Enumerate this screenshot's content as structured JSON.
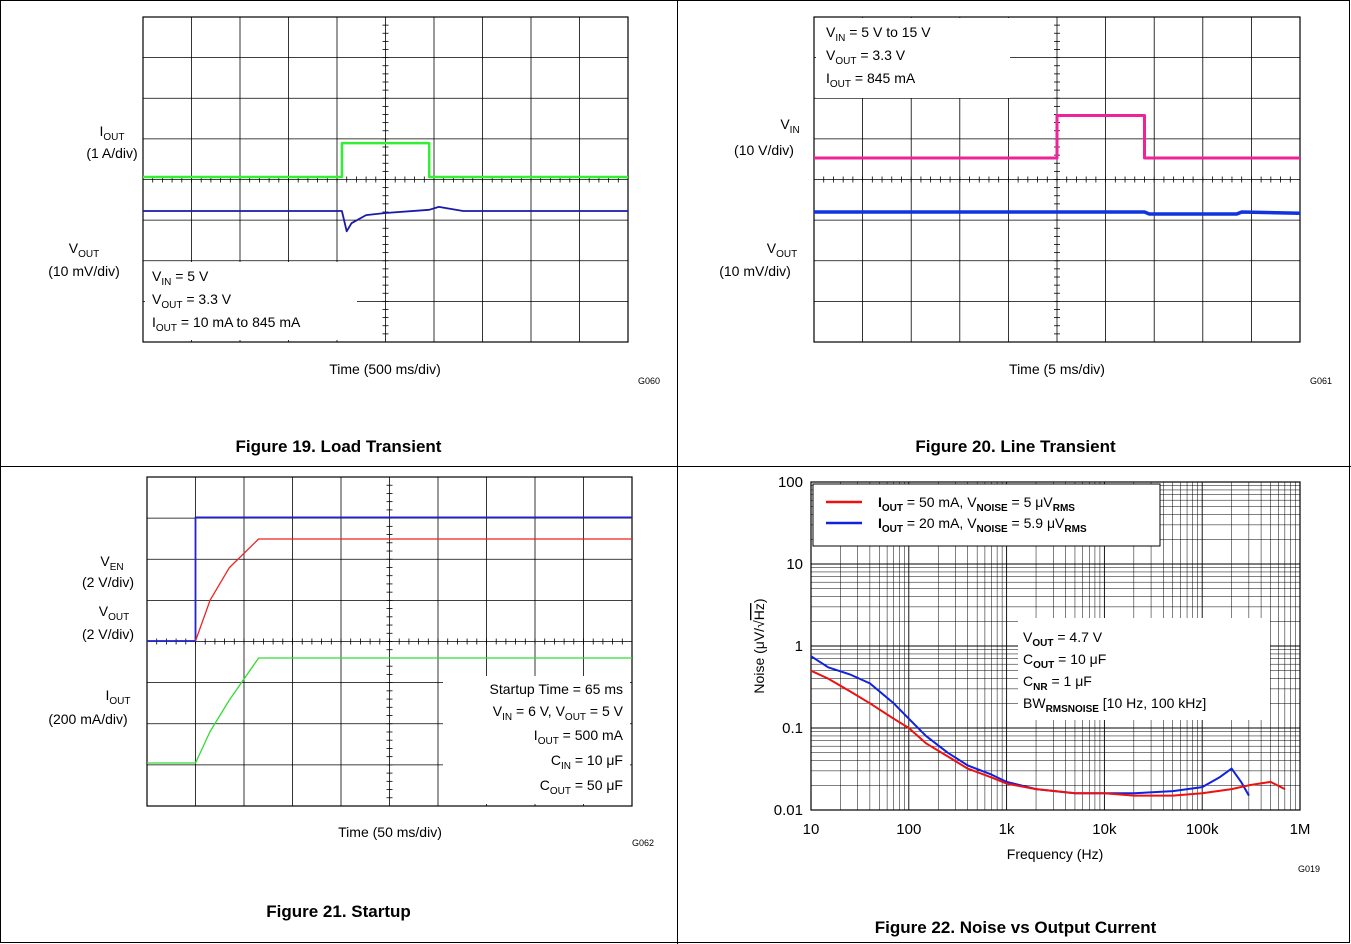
{
  "fig19": {
    "caption": "Figure 19. Load Transient",
    "xlabel": "Time (500 ms/div)",
    "code": "G060",
    "ch1": {
      "main": "I",
      "sub": "OUT",
      "unit": "(1 A/div)"
    },
    "ch2": {
      "main": "V",
      "sub": "OUT",
      "unit": "(10 mV/div)"
    },
    "cond": [
      {
        "main": "V",
        "sub": "IN",
        "rest": " = 5 V"
      },
      {
        "main": "V",
        "sub": "OUT",
        "rest": " = 3.3 V"
      },
      {
        "main": "I",
        "sub": "OUT",
        "rest": " = 10 mA to 845 mA"
      }
    ]
  },
  "fig20": {
    "caption": "Figure 20. Line Transient",
    "xlabel": "Time (5 ms/div)",
    "code": "G061",
    "ch1": {
      "main": "V",
      "sub": "IN",
      "unit": "(10 V/div)"
    },
    "ch2": {
      "main": "V",
      "sub": "OUT",
      "unit": "(10 mV/div)"
    },
    "cond": [
      {
        "main": "V",
        "sub": "IN",
        "rest": " = 5 V to 15 V"
      },
      {
        "main": "V",
        "sub": "OUT",
        "rest": " = 3.3 V"
      },
      {
        "main": "I",
        "sub": "OUT",
        "rest": " = 845 mA"
      }
    ]
  },
  "fig21": {
    "caption": "Figure 21. Startup",
    "xlabel": "Time (50 ms/div)",
    "code": "G062",
    "ch1": {
      "main": "V",
      "sub": "EN",
      "unit": "(2 V/div)"
    },
    "ch2": {
      "main": "V",
      "sub": "OUT",
      "unit": "(2 V/div)"
    },
    "ch3": {
      "main": "I",
      "sub": "OUT",
      "unit": "(200 mA/div)"
    },
    "cond": {
      "line1": "Startup Time = 65 ms",
      "line2": [
        {
          "main": "V",
          "sub": "IN",
          "rest": " = 6 V, "
        },
        {
          "main": "V",
          "sub": "OUT",
          "rest": " = 5 V"
        }
      ],
      "line3": {
        "main": "I",
        "sub": "OUT",
        "rest": " = 500 mA"
      },
      "line4": {
        "main": "C",
        "sub": "IN",
        "rest": " = 10 μF"
      },
      "line5": {
        "main": "C",
        "sub": "OUT",
        "rest": " = 50 μF"
      }
    }
  },
  "fig22": {
    "caption": "Figure 22. Noise vs Output Current",
    "xlabel": "Frequency (Hz)",
    "ylabel_pre": "Noise (μV/",
    "ylabel_rad": "Hz",
    "ylabel_post": ")",
    "code": "G019",
    "xticks": [
      "10",
      "100",
      "1k",
      "10k",
      "100k",
      "1M"
    ],
    "yticks": [
      "100",
      "10",
      "1",
      "0.1",
      "0.01"
    ],
    "legend": [
      {
        "color": "#ee1111",
        "p1": "I",
        "s1": "OUT",
        "p2": " = 50 mA, V",
        "s2": "NOISE",
        "p3": " = 5 μV",
        "s3": "RMS"
      },
      {
        "color": "#1122dd",
        "p1": "I",
        "s1": "OUT",
        "p2": " = 20 mA, V",
        "s2": "NOISE",
        "p3": " = 5.9 μV",
        "s3": "RMS"
      }
    ],
    "cond": [
      {
        "main": "V",
        "sub": "OUT",
        "rest": " = 4.7 V"
      },
      {
        "main": "C",
        "sub": "OUT",
        "rest": " = 10 μF"
      },
      {
        "main": "C",
        "sub": "NR",
        "rest": " = 1 μF"
      },
      {
        "main": "BW",
        "sub": "RMSNOISE",
        "rest": " [10 Hz, 100 kHz]"
      }
    ]
  },
  "chart_data": [
    {
      "type": "line",
      "title": "Figure 19. Load Transient",
      "xlabel": "Time (500 ms/div)",
      "x_divisions": 10,
      "series": [
        {
          "name": "IOUT (1 A/div)",
          "color": "#33ee33",
          "unit": "A",
          "x": [
            0,
            4.1,
            4.1,
            5.9,
            5.9,
            10
          ],
          "y": [
            0.01,
            0.01,
            0.845,
            0.845,
            0.01,
            0.01
          ]
        },
        {
          "name": "VOUT (10 mV/div)",
          "color": "#1a1aaa",
          "unit": "mV deviation",
          "x": [
            0,
            4.1,
            4.2,
            4.3,
            4.6,
            5,
            5.9,
            6.1,
            6.6,
            10
          ],
          "y": [
            0,
            0,
            -5,
            -3,
            -1,
            -0.5,
            0.3,
            1,
            0,
            0
          ]
        }
      ]
    },
    {
      "type": "line",
      "title": "Figure 20. Line Transient",
      "xlabel": "Time (5 ms/div)",
      "x_divisions": 10,
      "series": [
        {
          "name": "VIN (10 V/div)",
          "color": "#ee2299",
          "unit": "V",
          "x": [
            0,
            5,
            5,
            6.8,
            6.8,
            10
          ],
          "y": [
            5,
            5,
            15,
            15,
            5,
            5
          ]
        },
        {
          "name": "VOUT (10 mV/div)",
          "color": "#1133dd",
          "unit": "mV deviation",
          "x": [
            0,
            5,
            6.8,
            6.9,
            8.7,
            8.8,
            10
          ],
          "y": [
            0,
            0,
            0,
            -0.5,
            -0.5,
            0,
            -0.3
          ]
        }
      ]
    },
    {
      "type": "line",
      "title": "Figure 21. Startup",
      "xlabel": "Time (50 ms/div)",
      "x_divisions": 10,
      "series": [
        {
          "name": "VEN (2 V/div)",
          "color": "#2222cc",
          "unit": "V",
          "x": [
            0,
            1,
            1,
            10
          ],
          "y": [
            0,
            0,
            6,
            6
          ]
        },
        {
          "name": "VOUT (2 V/div)",
          "color": "#ee2222",
          "unit": "V",
          "x": [
            1,
            1.3,
            1.7,
            2.3,
            10
          ],
          "y": [
            0,
            2.0,
            3.6,
            5,
            5
          ]
        },
        {
          "name": "IOUT (200 mA/div)",
          "color": "#33dd33",
          "unit": "mA",
          "x": [
            0,
            1,
            1.3,
            1.7,
            2.3,
            10
          ],
          "y": [
            0,
            0,
            150,
            300,
            500,
            500
          ]
        }
      ]
    },
    {
      "type": "line",
      "title": "Figure 22. Noise vs Output Current",
      "xlabel": "Frequency (Hz)",
      "ylabel": "Noise (μV/√Hz)",
      "xscale": "log",
      "yscale": "log",
      "xlim": [
        10,
        1000000
      ],
      "ylim": [
        0.01,
        100
      ],
      "legend": "top-left",
      "series": [
        {
          "name": "IOUT = 50 mA, VNOISE = 5 μVRMS",
          "color": "#ee1111",
          "x": [
            10,
            15,
            25,
            40,
            70,
            100,
            150,
            250,
            400,
            700,
            1000,
            2000,
            5000,
            10000,
            20000,
            50000,
            100000,
            200000,
            300000,
            500000,
            700000
          ],
          "y": [
            0.5,
            0.4,
            0.28,
            0.2,
            0.13,
            0.1,
            0.065,
            0.045,
            0.032,
            0.025,
            0.021,
            0.018,
            0.016,
            0.016,
            0.015,
            0.015,
            0.016,
            0.018,
            0.02,
            0.022,
            0.018
          ]
        },
        {
          "name": "IOUT = 20 mA, VNOISE = 5.9 μVRMS",
          "color": "#1122dd",
          "x": [
            10,
            15,
            25,
            40,
            70,
            100,
            150,
            250,
            400,
            700,
            1000,
            2000,
            5000,
            10000,
            20000,
            50000,
            100000,
            150000,
            200000,
            250000,
            300000
          ],
          "y": [
            0.75,
            0.55,
            0.45,
            0.35,
            0.2,
            0.13,
            0.08,
            0.05,
            0.035,
            0.027,
            0.022,
            0.018,
            0.016,
            0.016,
            0.016,
            0.017,
            0.019,
            0.025,
            0.032,
            0.022,
            0.015
          ]
        }
      ]
    }
  ]
}
